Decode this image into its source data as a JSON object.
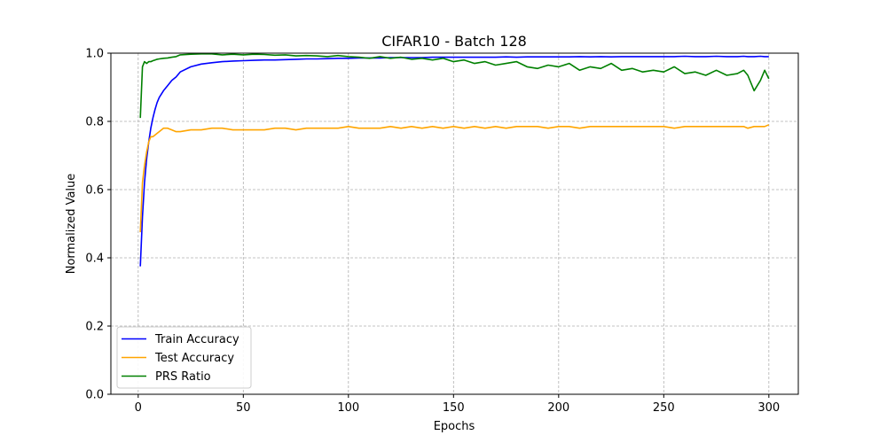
{
  "chart_data": {
    "type": "line",
    "title": "CIFAR10 - Batch 128",
    "xlabel": "Epochs",
    "ylabel": "Normalized Value",
    "xlim": [
      -13,
      314
    ],
    "ylim": [
      0.0,
      1.0
    ],
    "xticks": [
      0,
      50,
      100,
      150,
      200,
      250,
      300
    ],
    "yticks": [
      0.0,
      0.2,
      0.4,
      0.6,
      0.8,
      1.0
    ],
    "grid": true,
    "legend_position": "lower-left",
    "x": [
      1,
      2,
      3,
      4,
      5,
      6,
      7,
      8,
      9,
      10,
      12,
      14,
      16,
      18,
      20,
      25,
      30,
      35,
      40,
      45,
      50,
      55,
      60,
      65,
      70,
      75,
      80,
      85,
      90,
      95,
      100,
      105,
      110,
      115,
      120,
      125,
      130,
      135,
      140,
      145,
      150,
      155,
      160,
      165,
      170,
      175,
      180,
      185,
      190,
      195,
      200,
      205,
      210,
      215,
      220,
      225,
      230,
      235,
      240,
      245,
      250,
      255,
      260,
      265,
      270,
      275,
      280,
      285,
      288,
      290,
      293,
      296,
      298,
      300
    ],
    "series": [
      {
        "name": "Train Accuracy",
        "color": "#0000ff",
        "values": [
          0.375,
          0.52,
          0.62,
          0.69,
          0.74,
          0.78,
          0.81,
          0.835,
          0.855,
          0.87,
          0.89,
          0.905,
          0.92,
          0.93,
          0.945,
          0.96,
          0.968,
          0.972,
          0.975,
          0.977,
          0.978,
          0.979,
          0.98,
          0.98,
          0.981,
          0.982,
          0.983,
          0.983,
          0.984,
          0.985,
          0.985,
          0.986,
          0.986,
          0.986,
          0.987,
          0.987,
          0.987,
          0.987,
          0.988,
          0.988,
          0.988,
          0.988,
          0.988,
          0.988,
          0.988,
          0.989,
          0.988,
          0.989,
          0.989,
          0.989,
          0.989,
          0.989,
          0.99,
          0.989,
          0.99,
          0.989,
          0.99,
          0.99,
          0.99,
          0.99,
          0.99,
          0.99,
          0.991,
          0.99,
          0.99,
          0.991,
          0.99,
          0.99,
          0.991,
          0.99,
          0.99,
          0.991,
          0.99,
          0.99
        ]
      },
      {
        "name": "Test Accuracy",
        "color": "#ffa500",
        "values": [
          0.475,
          0.62,
          0.67,
          0.71,
          0.74,
          0.755,
          0.755,
          0.76,
          0.765,
          0.77,
          0.78,
          0.78,
          0.775,
          0.77,
          0.77,
          0.775,
          0.775,
          0.78,
          0.78,
          0.775,
          0.775,
          0.775,
          0.775,
          0.78,
          0.78,
          0.775,
          0.78,
          0.78,
          0.78,
          0.78,
          0.785,
          0.78,
          0.78,
          0.78,
          0.785,
          0.78,
          0.785,
          0.78,
          0.785,
          0.78,
          0.785,
          0.78,
          0.785,
          0.78,
          0.785,
          0.78,
          0.785,
          0.785,
          0.785,
          0.78,
          0.785,
          0.785,
          0.78,
          0.785,
          0.785,
          0.785,
          0.785,
          0.785,
          0.785,
          0.785,
          0.785,
          0.78,
          0.785,
          0.785,
          0.785,
          0.785,
          0.785,
          0.785,
          0.785,
          0.78,
          0.785,
          0.785,
          0.785,
          0.79
        ]
      },
      {
        "name": "PRS Ratio",
        "color": "#008000",
        "values": [
          0.81,
          0.96,
          0.975,
          0.97,
          0.975,
          0.975,
          0.978,
          0.98,
          0.982,
          0.983,
          0.985,
          0.986,
          0.988,
          0.99,
          0.995,
          0.997,
          0.998,
          0.998,
          0.995,
          0.997,
          0.995,
          0.997,
          0.996,
          0.994,
          0.995,
          0.992,
          0.993,
          0.992,
          0.99,
          0.993,
          0.99,
          0.988,
          0.985,
          0.99,
          0.985,
          0.988,
          0.982,
          0.985,
          0.98,
          0.985,
          0.975,
          0.98,
          0.97,
          0.975,
          0.965,
          0.97,
          0.975,
          0.96,
          0.955,
          0.965,
          0.96,
          0.97,
          0.95,
          0.96,
          0.955,
          0.97,
          0.95,
          0.955,
          0.945,
          0.95,
          0.945,
          0.96,
          0.94,
          0.945,
          0.935,
          0.95,
          0.935,
          0.94,
          0.95,
          0.935,
          0.89,
          0.92,
          0.95,
          0.925
        ]
      }
    ]
  }
}
